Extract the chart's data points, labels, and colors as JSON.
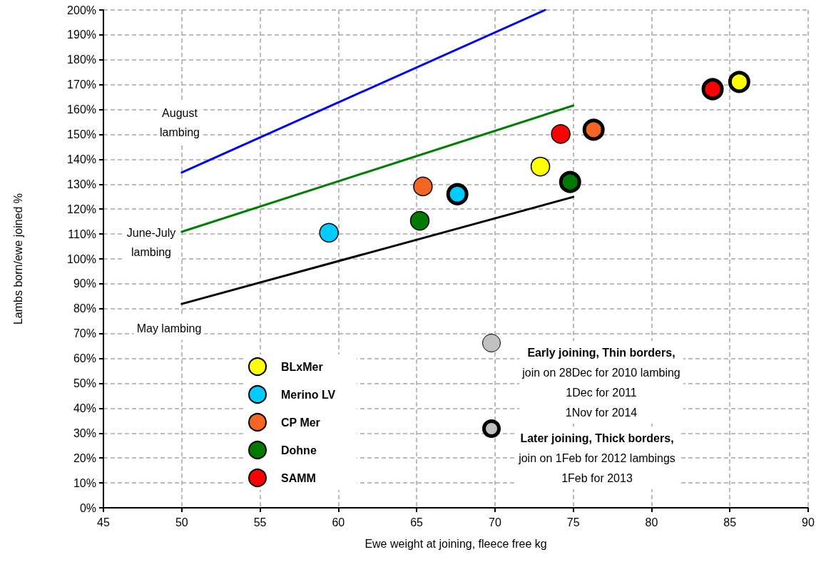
{
  "chart_data": {
    "type": "scatter",
    "xlabel": "Ewe weight at joining, fleece free kg",
    "ylabel": "Lambs born/ewe joined %",
    "xlim": [
      45,
      90
    ],
    "xticks": [
      45,
      50,
      55,
      60,
      65,
      70,
      75,
      80,
      85,
      90
    ],
    "ylim": [
      0,
      200
    ],
    "yticks": [
      {
        "value": 0,
        "label": "0%"
      },
      {
        "value": 10,
        "label": "10%"
      },
      {
        "value": 20,
        "label": "20%"
      },
      {
        "value": 30,
        "label": "30%"
      },
      {
        "value": 40,
        "label": "40%"
      },
      {
        "value": 50,
        "label": "50%"
      },
      {
        "value": 60,
        "label": "60%"
      },
      {
        "value": 70,
        "label": "70%"
      },
      {
        "value": 80,
        "label": "80%"
      },
      {
        "value": 90,
        "label": "90%"
      },
      {
        "value": 100,
        "label": "100%"
      },
      {
        "value": 110,
        "label": "110%"
      },
      {
        "value": 120,
        "label": "120%"
      },
      {
        "value": 130,
        "label": "130%"
      },
      {
        "value": 140,
        "label": "140%"
      },
      {
        "value": 150,
        "label": "150%"
      },
      {
        "value": 160,
        "label": "160%"
      },
      {
        "value": 170,
        "label": "170%"
      },
      {
        "value": 180,
        "label": "180%"
      },
      {
        "value": 190,
        "label": "190%"
      },
      {
        "value": 200,
        "label": "200%"
      }
    ],
    "grid": true,
    "legend": "bottom left",
    "marker": "circle",
    "series": [
      {
        "type": "line",
        "color": "#0000ff",
        "x": [
          50,
          73.2
        ],
        "values": [
          134.7,
          200
        ],
        "marker": "none"
      },
      {
        "type": "line",
        "color": "#008000",
        "x": [
          50,
          75
        ],
        "values": [
          110.9,
          161.6
        ],
        "marker": "none"
      },
      {
        "type": "line",
        "color": "#000000",
        "x": [
          50,
          75
        ],
        "values": [
          81.9,
          124.9
        ],
        "marker": "none"
      },
      {
        "name": "BLxMer",
        "color": "#ffff00",
        "x": [
          72.9
        ],
        "values": [
          137.1
        ]
      },
      {
        "name": "Merino LV",
        "color": "#00ccff",
        "x": [
          59.4
        ],
        "values": [
          110.5
        ]
      },
      {
        "name": "CP Mer",
        "color": "#f26522",
        "x": [
          65.4
        ],
        "values": [
          129.1
        ]
      },
      {
        "name": "Dohne",
        "color": "#007a00",
        "x": [
          65.2
        ],
        "values": [
          115.3
        ]
      },
      {
        "name": "SAMM",
        "color": "#ff0000",
        "x": [
          74.2
        ],
        "values": [
          150.2
        ]
      },
      {
        "color": "#ffff00",
        "x": [
          85.6
        ],
        "values": [
          171.1
        ]
      },
      {
        "color": "#00ccff",
        "x": [
          67.6
        ],
        "values": [
          126.0
        ]
      },
      {
        "color": "#f26522",
        "x": [
          76.3
        ],
        "values": [
          151.9
        ]
      },
      {
        "color": "#007a00",
        "x": [
          74.8
        ],
        "values": [
          130.9
        ]
      },
      {
        "color": "#ff0000",
        "x": [
          83.9
        ],
        "values": [
          168.2
        ]
      }
    ],
    "annotations": [
      "August\nlambing",
      "June-July\nlambing",
      "May lambing",
      "Early joining, Thin borders,\njoin on 28Dec for 2010 lambing\n1Dec for 2011\n1Nov for 2014",
      "Later joining, Thick borders,\njoin on 1Feb for 2012 lambings\n1Feb for 2013"
    ]
  }
}
